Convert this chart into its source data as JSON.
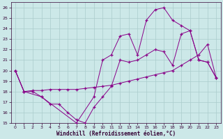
{
  "xlabel": "Windchill (Refroidissement éolien,°C)",
  "bg_color": "#cce8e8",
  "grid_color": "#aacccc",
  "line_color": "#880088",
  "xlim": [
    -0.5,
    23.5
  ],
  "ylim": [
    15,
    26.5
  ],
  "xticks": [
    0,
    1,
    2,
    3,
    4,
    5,
    6,
    7,
    8,
    9,
    10,
    11,
    12,
    13,
    14,
    15,
    16,
    17,
    18,
    19,
    20,
    21,
    22,
    23
  ],
  "yticks": [
    15,
    16,
    17,
    18,
    19,
    20,
    21,
    22,
    23,
    24,
    25,
    26
  ],
  "line1_x": [
    0,
    1,
    2,
    3,
    4,
    5,
    6,
    7,
    8,
    9,
    10,
    11,
    12,
    13,
    14,
    15,
    16,
    17,
    18,
    19,
    20,
    21,
    22,
    23
  ],
  "line1_y": [
    20.0,
    18.0,
    18.0,
    17.5,
    16.8,
    16.8,
    16.0,
    15.3,
    15.0,
    16.5,
    17.5,
    18.5,
    21.0,
    20.8,
    21.0,
    21.5,
    22.0,
    21.8,
    20.5,
    23.5,
    23.8,
    21.0,
    20.8,
    19.3
  ],
  "line2_x": [
    0,
    1,
    2,
    3,
    4,
    5,
    6,
    7,
    8,
    9,
    10,
    11,
    12,
    13,
    14,
    15,
    16,
    17,
    18,
    19,
    20,
    21,
    22,
    23
  ],
  "line2_y": [
    20.0,
    18.0,
    18.1,
    18.1,
    18.2,
    18.2,
    18.2,
    18.2,
    18.3,
    18.4,
    18.5,
    18.6,
    18.8,
    19.0,
    19.2,
    19.4,
    19.6,
    19.8,
    20.0,
    20.5,
    21.0,
    21.5,
    22.5,
    19.3
  ],
  "line3_x": [
    0,
    1,
    3,
    7,
    9,
    10,
    11,
    12,
    13,
    14,
    15,
    16,
    17,
    18,
    19,
    20,
    21,
    22,
    23
  ],
  "line3_y": [
    20.0,
    18.0,
    17.5,
    15.0,
    17.5,
    21.0,
    21.5,
    23.3,
    23.5,
    21.5,
    24.8,
    25.8,
    26.0,
    24.8,
    24.3,
    23.8,
    21.0,
    20.8,
    19.3
  ]
}
